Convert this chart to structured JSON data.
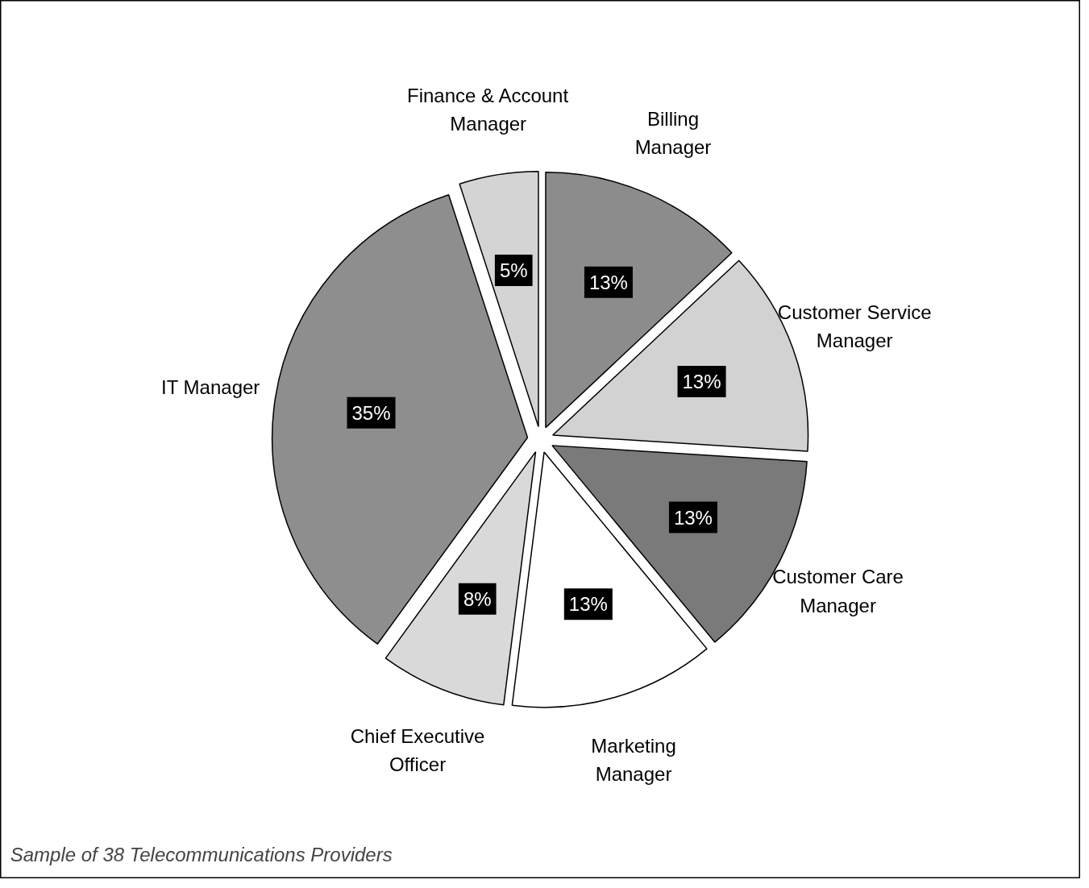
{
  "chart_data": {
    "type": "pie",
    "categories": [
      "Billing Manager",
      "Customer Service Manager",
      "Customer Care Manager",
      "Marketing Manager",
      "Chief Executive Officer",
      "IT Manager",
      "Finance & Account Manager"
    ],
    "values": [
      13,
      13,
      13,
      13,
      8,
      35,
      5
    ],
    "colors": [
      "#8c8c8c",
      "#d2d2d2",
      "#7a7a7a",
      "#ffffff",
      "#d9d9d9",
      "#8e8e8e",
      "#d4d4d4"
    ],
    "value_labels": [
      "13%",
      "13%",
      "13%",
      "13%",
      "8%",
      "35%",
      "5%"
    ],
    "annotations": [
      "Sample of 38 Telecommunications Providers"
    ]
  }
}
